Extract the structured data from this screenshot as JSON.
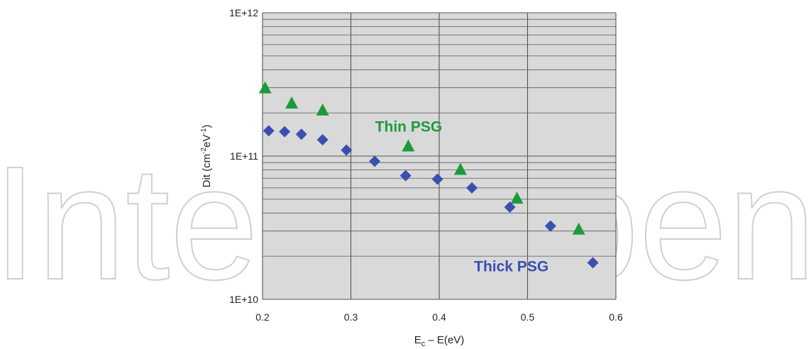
{
  "watermark": "IntechOpen",
  "chart_data": {
    "type": "scatter",
    "title": "",
    "xlabel": "E_c – E(eV)",
    "ylabel": "Dit (cm⁻²eV⁻¹)",
    "xlim": [
      0.2,
      0.6
    ],
    "ylim": [
      10000000000.0,
      1000000000000.0
    ],
    "y_scale": "log",
    "x_ticks": [
      "0.2",
      "0.3",
      "0.4",
      "0.5",
      "0.6"
    ],
    "y_ticks": [
      "1E+10",
      "1E+11",
      "1E+12"
    ],
    "grid": true,
    "background": "#d9d9d9",
    "series": [
      {
        "name": "Thin PSG",
        "marker": "triangle",
        "color": "#1e9a3c",
        "x": [
          0.203,
          0.233,
          0.268,
          0.365,
          0.424,
          0.488,
          0.558
        ],
        "y": [
          300000000000.0,
          235000000000.0,
          210000000000.0,
          118000000000.0,
          81000000000.0,
          51000000000.0,
          31000000000.0
        ]
      },
      {
        "name": "Thick PSG",
        "marker": "diamond",
        "color": "#3a4fb0",
        "x": [
          0.207,
          0.225,
          0.244,
          0.268,
          0.295,
          0.327,
          0.362,
          0.398,
          0.437,
          0.48,
          0.526,
          0.574
        ],
        "y": [
          150000000000.0,
          148000000000.0,
          142000000000.0,
          130000000000.0,
          110000000000.0,
          92000000000.0,
          73000000000.0,
          69000000000.0,
          60000000000.0,
          44000000000.0,
          32500000000.0,
          18000000000.0
        ]
      }
    ],
    "annotations": [
      {
        "text": "Thin PSG",
        "series": "Thin PSG",
        "x": 0.313,
        "y": 162000000000.0
      },
      {
        "text": "Thick PSG",
        "series": "Thick PSG",
        "x": 0.425,
        "y": 17200000000.0
      }
    ]
  }
}
